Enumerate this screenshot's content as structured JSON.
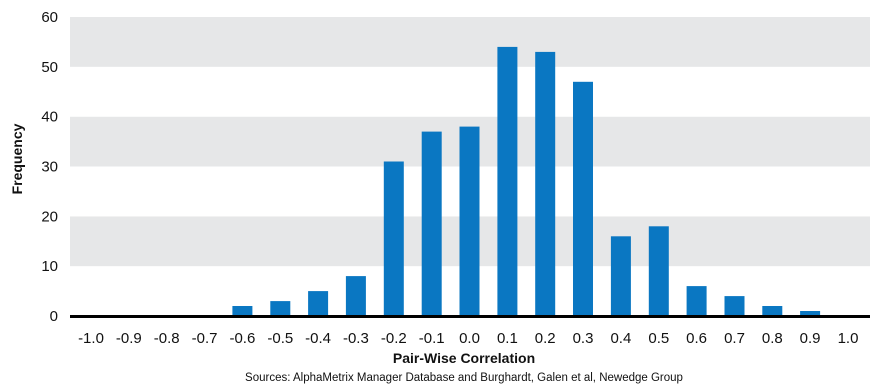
{
  "chart_data": {
    "type": "bar",
    "categories": [
      "-1.0",
      "-0.9",
      "-0.8",
      "-0.7",
      "-0.6",
      "-0.5",
      "-0.4",
      "-0.3",
      "-0.2",
      "-0.1",
      "0.0",
      "0.1",
      "0.2",
      "0.3",
      "0.4",
      "0.5",
      "0.6",
      "0.7",
      "0.8",
      "0.9",
      "1.0"
    ],
    "values": [
      0,
      0,
      0,
      0,
      2,
      3,
      5,
      8,
      31,
      37,
      38,
      54,
      53,
      47,
      16,
      18,
      6,
      4,
      2,
      1,
      0
    ],
    "xlabel": "Pair-Wise Correlation",
    "ylabel": "Frequency",
    "ylim": [
      0,
      60
    ],
    "yticks": [
      0,
      10,
      20,
      30,
      40,
      50,
      60
    ],
    "source": "Sources: AlphaMetrix Manager Database and Burghardt, Galen et al, Newedge Group",
    "grid": "alternating horizontal bands",
    "colors": {
      "bar": "#0a77c2",
      "band": "#e6e7e8",
      "axis": "#000000"
    }
  }
}
